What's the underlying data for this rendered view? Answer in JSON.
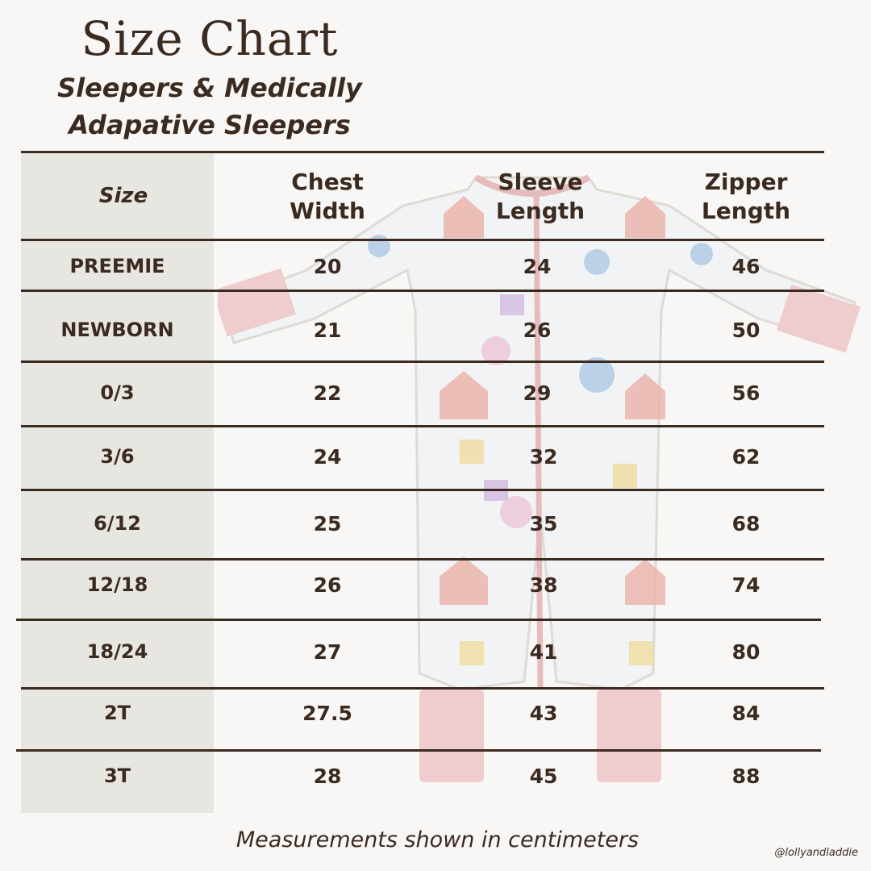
{
  "title": "Size Chart",
  "subtitle_line1": "Sleepers & Medically",
  "subtitle_line2": "Adapative Sleepers",
  "headers": {
    "size": "Size",
    "chest": "Chest\nWidth",
    "sleeve": "Sleeve\nLength",
    "zipper": "Zipper\nLength"
  },
  "rows": [
    {
      "size": "PREEMIE",
      "chest": "20",
      "sleeve": "24",
      "zipper": "46"
    },
    {
      "size": "NEWBORN",
      "chest": "21",
      "sleeve": "26",
      "zipper": "50"
    },
    {
      "size": "0/3",
      "chest": "22",
      "sleeve": "29",
      "zipper": "56"
    },
    {
      "size": "3/6",
      "chest": "24",
      "sleeve": "32",
      "zipper": "62"
    },
    {
      "size": "6/12",
      "chest": "25",
      "sleeve": "35",
      "zipper": "68"
    },
    {
      "size": "12/18",
      "chest": "26",
      "sleeve": "38",
      "zipper": "74"
    },
    {
      "size": "18/24",
      "chest": "27",
      "sleeve": "41",
      "zipper": "80"
    },
    {
      "size": "2T",
      "chest": "27.5",
      "sleeve": "43",
      "zipper": "84"
    },
    {
      "size": "3T",
      "chest": "28",
      "sleeve": "45",
      "zipper": "88"
    }
  ],
  "footnote": "Measurements shown in centimeters",
  "handle": "@lollyandladdie",
  "colors": {
    "text": "#3b2a20",
    "background": "#f8f7f5",
    "size_column": "#e8e6e1",
    "garment_trim": "#d98b8e"
  }
}
